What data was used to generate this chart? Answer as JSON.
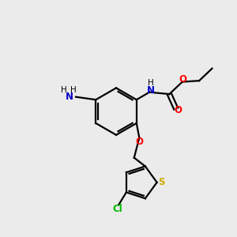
{
  "background_color": "#ebebeb",
  "bond_color": "#000000",
  "atom_colors": {
    "N": "#0000cc",
    "O": "#ff0000",
    "S": "#ccaa00",
    "Cl": "#00bb00",
    "C": "#000000",
    "H": "#000000"
  },
  "figsize": [
    3.0,
    3.0
  ],
  "dpi": 100
}
